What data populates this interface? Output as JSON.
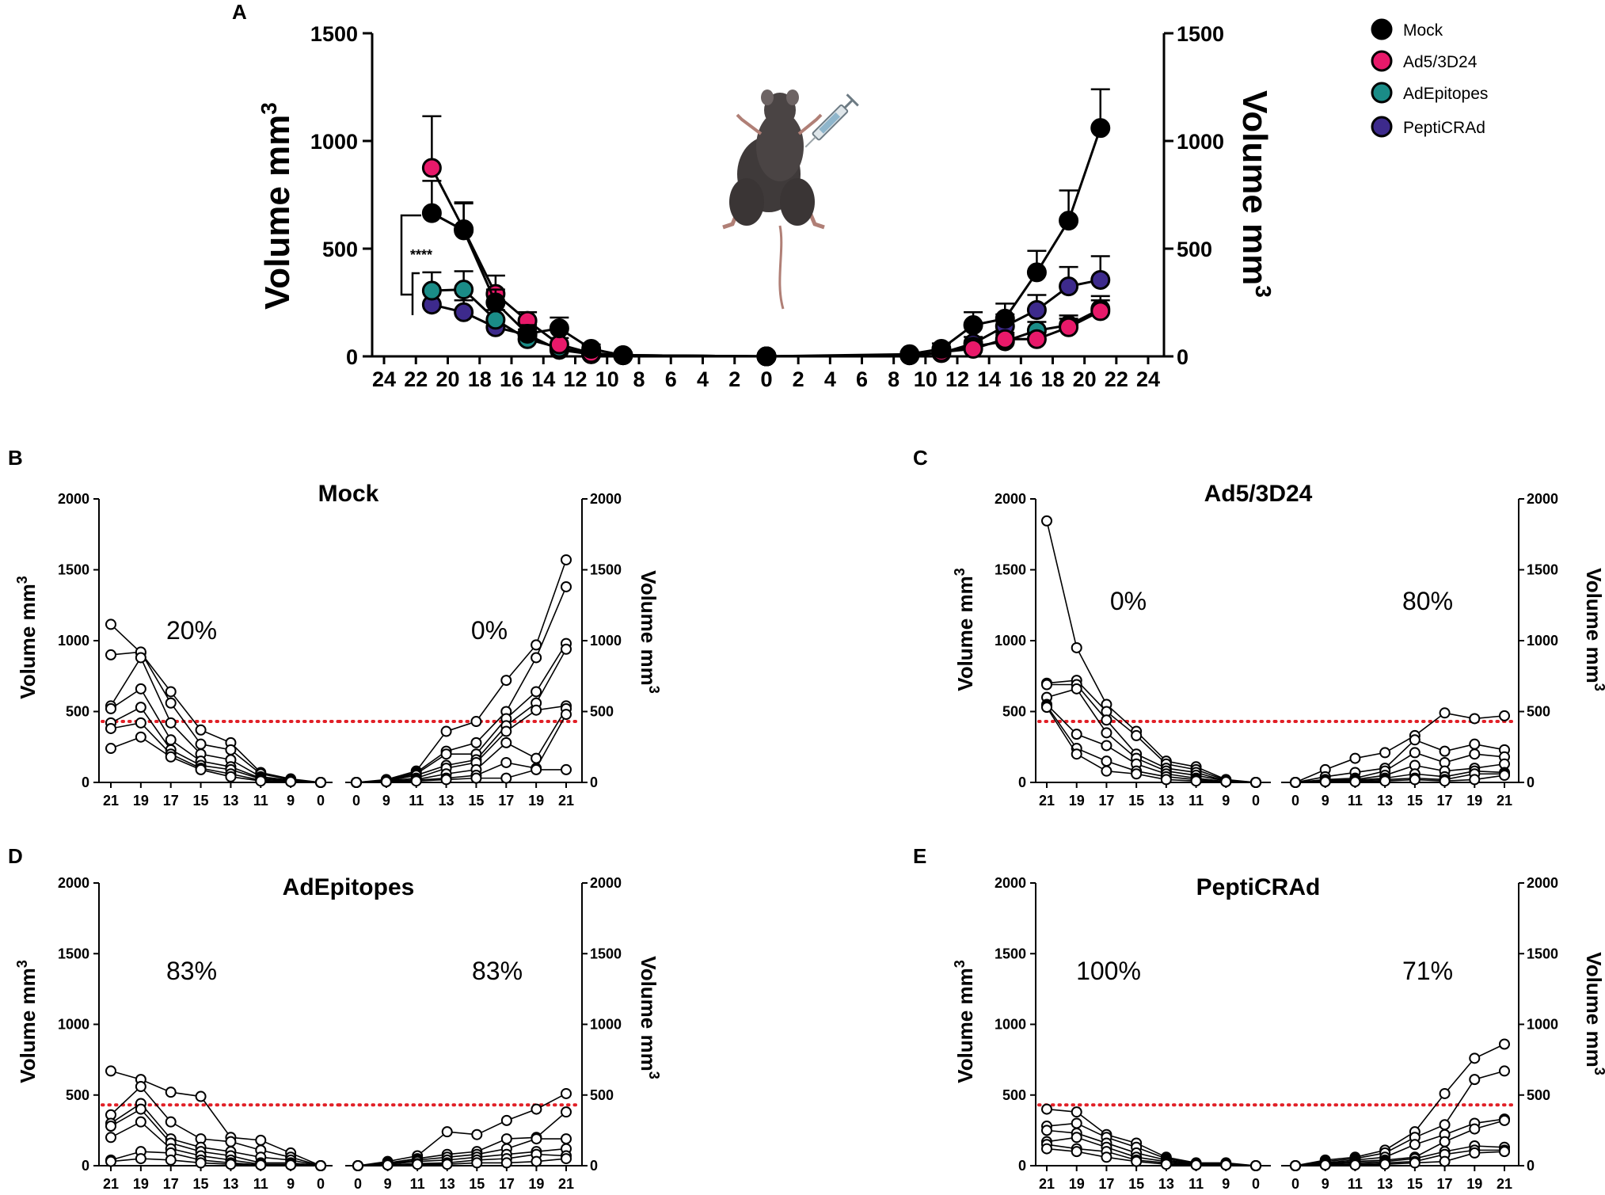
{
  "colors": {
    "Mock": "#000000",
    "Ad5/3D24": "#e8196a",
    "AdEpitopes": "#1a8c87",
    "PeptiCRAd": "#3d2a8c",
    "threshold": "#e11f26"
  },
  "chart_data": [
    {
      "panel": "A",
      "type": "line",
      "ylabel_left": "Volume mm",
      "ylabel_right": "Volume mm",
      "ylabel_superscript": "3",
      "y_ticks": [
        "0",
        "500",
        "1000",
        "1500"
      ],
      "x_ticks_left": [
        "24",
        "22",
        "20",
        "18",
        "16",
        "14",
        "12",
        "10",
        "8",
        "6",
        "4",
        "2",
        "0"
      ],
      "x_ticks_right": [
        "0",
        "2",
        "4",
        "6",
        "8",
        "10",
        "12",
        "14",
        "16",
        "18",
        "20",
        "22",
        "24"
      ],
      "ylim": [
        0,
        1500
      ],
      "xlim_days": [
        0,
        24
      ],
      "significance": "****",
      "legend": [
        "Mock",
        "Ad5/3D24",
        "AdEpitopes",
        "PeptiCRAd"
      ],
      "days": [
        0,
        9,
        11,
        13,
        15,
        17,
        19,
        21
      ],
      "series": [
        {
          "name": "Mock",
          "left": [
            0,
            5,
            35,
            130,
            105,
            250,
            585,
            665
          ],
          "left_err": [
            0,
            10,
            20,
            50,
            40,
            60,
            130,
            150
          ],
          "right": [
            0,
            10,
            35,
            145,
            175,
            390,
            630,
            1060
          ],
          "right_err": [
            0,
            10,
            25,
            60,
            70,
            100,
            140,
            180
          ]
        },
        {
          "name": "Ad5/3D24",
          "left": [
            0,
            5,
            15,
            55,
            165,
            290,
            590,
            875
          ],
          "left_err": [
            0,
            5,
            15,
            30,
            40,
            85,
            120,
            240
          ],
          "right": [
            0,
            5,
            20,
            35,
            80,
            80,
            135,
            210
          ],
          "right_err": [
            0,
            5,
            15,
            20,
            30,
            30,
            40,
            50
          ]
        },
        {
          "name": "AdEpitopes",
          "left": [
            0,
            5,
            10,
            40,
            80,
            170,
            310,
            305
          ],
          "left_err": [
            0,
            5,
            10,
            20,
            30,
            45,
            85,
            85
          ],
          "right": [
            0,
            5,
            20,
            45,
            70,
            120,
            145,
            220
          ],
          "right_err": [
            0,
            5,
            15,
            25,
            30,
            40,
            45,
            60
          ]
        },
        {
          "name": "PeptiCRAd",
          "left": [
            0,
            5,
            10,
            30,
            100,
            135,
            205,
            240
          ],
          "left_err": [
            0,
            5,
            10,
            15,
            25,
            40,
            55,
            60
          ],
          "right": [
            0,
            5,
            15,
            60,
            140,
            215,
            325,
            355
          ],
          "right_err": [
            0,
            5,
            15,
            30,
            55,
            70,
            90,
            110
          ]
        }
      ]
    },
    {
      "panel": "B",
      "title": "Mock",
      "type": "line",
      "ylabel_left": "Volume mm",
      "ylabel_right": "Volume mm",
      "ylabel_superscript": "3",
      "y_ticks": [
        "0",
        "500",
        "1000",
        "1500",
        "2000"
      ],
      "ylim": [
        0,
        2000
      ],
      "x_ticks_left": [
        "21",
        "19",
        "17",
        "15",
        "13",
        "11",
        "9",
        "0"
      ],
      "x_ticks_right": [
        "0",
        "9",
        "11",
        "13",
        "15",
        "17",
        "19",
        "21"
      ],
      "threshold": 430,
      "pct_left": "20%",
      "pct_right": "0%",
      "left_mice": [
        [
          1115,
          915,
          640,
          370,
          280,
          70,
          25,
          0
        ],
        [
          900,
          920,
          560,
          270,
          230,
          60,
          20,
          0
        ],
        [
          540,
          880,
          420,
          200,
          160,
          40,
          15,
          0
        ],
        [
          520,
          660,
          300,
          150,
          110,
          30,
          10,
          0
        ],
        [
          420,
          530,
          230,
          120,
          90,
          25,
          10,
          0
        ],
        [
          380,
          420,
          200,
          100,
          60,
          15,
          5,
          0
        ],
        [
          240,
          320,
          180,
          90,
          40,
          10,
          5,
          0
        ]
      ],
      "right_mice": [
        [
          0,
          20,
          80,
          360,
          430,
          720,
          970,
          1570
        ],
        [
          0,
          15,
          70,
          220,
          280,
          500,
          880,
          1380
        ],
        [
          0,
          15,
          60,
          200,
          200,
          450,
          640,
          980
        ],
        [
          0,
          10,
          50,
          120,
          160,
          400,
          560,
          940
        ],
        [
          0,
          10,
          30,
          100,
          140,
          360,
          510,
          540
        ],
        [
          0,
          5,
          20,
          60,
          90,
          280,
          170,
          520
        ],
        [
          0,
          5,
          15,
          30,
          50,
          140,
          100,
          480
        ],
        [
          0,
          5,
          10,
          20,
          30,
          30,
          90,
          90
        ]
      ]
    },
    {
      "panel": "C",
      "title": "Ad5/3D24",
      "type": "line",
      "ylabel_left": "Volume mm",
      "ylabel_right": "Volume mm",
      "ylabel_superscript": "3",
      "y_ticks": [
        "0",
        "500",
        "1000",
        "1500",
        "2000"
      ],
      "ylim": [
        0,
        2000
      ],
      "x_ticks_left": [
        "21",
        "19",
        "17",
        "15",
        "13",
        "11",
        "9",
        "0"
      ],
      "x_ticks_right": [
        "0",
        "9",
        "11",
        "13",
        "15",
        "17",
        "19",
        "21"
      ],
      "threshold": 430,
      "pct_left": "0%",
      "pct_right": "80%",
      "left_mice": [
        [
          1845,
          950,
          550,
          360,
          150,
          110,
          20,
          0
        ],
        [
          700,
          720,
          500,
          330,
          130,
          90,
          15,
          0
        ],
        [
          690,
          690,
          440,
          200,
          100,
          70,
          10,
          0
        ],
        [
          600,
          660,
          350,
          170,
          80,
          50,
          10,
          0
        ],
        [
          550,
          340,
          260,
          130,
          60,
          30,
          5,
          0
        ],
        [
          540,
          240,
          150,
          80,
          40,
          20,
          5,
          0
        ],
        [
          530,
          200,
          80,
          60,
          20,
          10,
          5,
          0
        ]
      ],
      "right_mice": [
        [
          0,
          90,
          170,
          210,
          330,
          490,
          450,
          470
        ],
        [
          0,
          40,
          70,
          100,
          300,
          220,
          270,
          230
        ],
        [
          0,
          20,
          30,
          80,
          210,
          140,
          200,
          180
        ],
        [
          0,
          15,
          20,
          50,
          120,
          80,
          100,
          130
        ],
        [
          0,
          10,
          15,
          30,
          60,
          40,
          80,
          70
        ],
        [
          0,
          5,
          10,
          20,
          30,
          20,
          60,
          60
        ],
        [
          0,
          5,
          5,
          10,
          20,
          10,
          20,
          50
        ]
      ]
    },
    {
      "panel": "D",
      "title": "AdEpitopes",
      "type": "line",
      "ylabel_left": "Volume mm",
      "ylabel_right": "Volume mm",
      "ylabel_superscript": "3",
      "y_ticks": [
        "0",
        "500",
        "1000",
        "1500",
        "2000"
      ],
      "ylim": [
        0,
        2000
      ],
      "x_ticks_left": [
        "21",
        "19",
        "17",
        "15",
        "13",
        "11",
        "9",
        "0"
      ],
      "x_ticks_right": [
        "0",
        "9",
        "11",
        "13",
        "15",
        "17",
        "19",
        "21"
      ],
      "threshold": 430,
      "pct_left": "83%",
      "pct_right": "83%",
      "left_mice": [
        [
          670,
          610,
          520,
          490,
          200,
          180,
          90,
          0
        ],
        [
          360,
          560,
          310,
          190,
          170,
          110,
          60,
          0
        ],
        [
          300,
          440,
          190,
          130,
          100,
          60,
          40,
          0
        ],
        [
          280,
          400,
          160,
          100,
          70,
          20,
          20,
          0
        ],
        [
          200,
          310,
          120,
          70,
          40,
          10,
          10,
          0
        ],
        [
          40,
          100,
          90,
          40,
          20,
          5,
          5,
          0
        ],
        [
          30,
          50,
          40,
          20,
          10,
          5,
          5,
          0
        ]
      ],
      "right_mice": [
        [
          0,
          30,
          70,
          240,
          220,
          320,
          400,
          510
        ],
        [
          0,
          20,
          50,
          80,
          100,
          190,
          200,
          380
        ],
        [
          0,
          15,
          40,
          60,
          80,
          120,
          190,
          190
        ],
        [
          0,
          10,
          30,
          40,
          60,
          80,
          100,
          120
        ],
        [
          0,
          5,
          15,
          20,
          40,
          50,
          80,
          70
        ],
        [
          0,
          5,
          10,
          10,
          20,
          20,
          30,
          50
        ]
      ]
    },
    {
      "panel": "E",
      "title": "PeptiCRAd",
      "type": "line",
      "ylabel_left": "Volume mm",
      "ylabel_right": "Volume mm",
      "ylabel_superscript": "3",
      "y_ticks": [
        "0",
        "500",
        "1000",
        "1500",
        "2000"
      ],
      "ylim": [
        0,
        2000
      ],
      "x_ticks_left": [
        "21",
        "19",
        "17",
        "15",
        "13",
        "11",
        "9",
        "0"
      ],
      "x_ticks_right": [
        "0",
        "9",
        "11",
        "13",
        "15",
        "17",
        "19",
        "21"
      ],
      "threshold": 430,
      "pct_left": "100%",
      "pct_right": "71%",
      "left_mice": [
        [
          400,
          380,
          220,
          160,
          60,
          20,
          20,
          0
        ],
        [
          280,
          300,
          200,
          130,
          50,
          15,
          15,
          0
        ],
        [
          250,
          230,
          160,
          90,
          40,
          10,
          10,
          0
        ],
        [
          170,
          200,
          130,
          60,
          30,
          10,
          5,
          0
        ],
        [
          150,
          120,
          100,
          40,
          20,
          5,
          5,
          0
        ],
        [
          120,
          100,
          60,
          30,
          10,
          5,
          5,
          0
        ]
      ],
      "right_mice": [
        [
          0,
          40,
          60,
          110,
          240,
          510,
          760,
          860
        ],
        [
          0,
          30,
          50,
          90,
          200,
          290,
          610,
          670
        ],
        [
          0,
          20,
          40,
          60,
          150,
          220,
          300,
          330
        ],
        [
          0,
          15,
          30,
          40,
          60,
          170,
          260,
          320
        ],
        [
          0,
          10,
          20,
          30,
          50,
          100,
          140,
          130
        ],
        [
          0,
          5,
          10,
          20,
          30,
          80,
          110,
          110
        ],
        [
          0,
          5,
          5,
          10,
          20,
          30,
          90,
          100
        ]
      ]
    }
  ]
}
